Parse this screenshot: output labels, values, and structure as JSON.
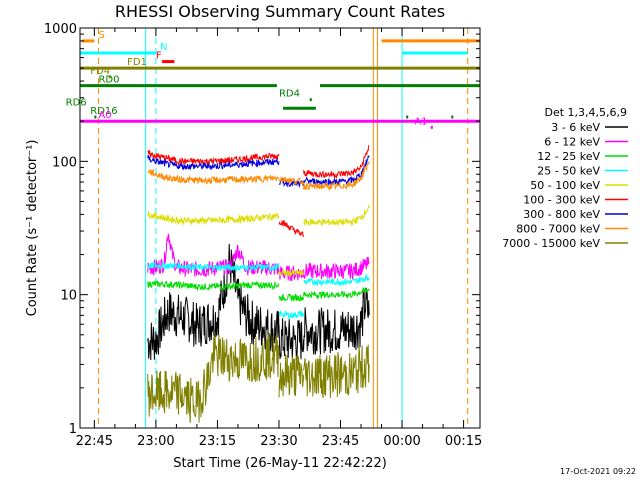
{
  "chart_data": {
    "type": "line",
    "title": "RHESSI Observing Summary Count Rates",
    "xlabel": "Start Time (26-May-11 22:42:22)",
    "ylabel": "Count Rate (s⁻¹ detector⁻¹)",
    "yscale": "log",
    "ylim": [
      1,
      1000
    ],
    "xlim_minutes_of_day": [
      1361.5,
      1459
    ],
    "x_ticks": [
      {
        "m": 1365,
        "label": "22:45"
      },
      {
        "m": 1380,
        "label": "23:00"
      },
      {
        "m": 1395,
        "label": "23:15"
      },
      {
        "m": 1410,
        "label": "23:30"
      },
      {
        "m": 1425,
        "label": "23:45"
      },
      {
        "m": 1440,
        "label": "00:00"
      },
      {
        "m": 1455,
        "label": "00:15"
      }
    ],
    "y_ticks": [
      {
        "v": 1,
        "label": "1"
      },
      {
        "v": 10,
        "label": "10"
      },
      {
        "v": 100,
        "label": "100"
      },
      {
        "v": 1000,
        "label": "1000"
      }
    ],
    "legend_title": "Det 1,3,4,5,6,9",
    "legend_position": "right",
    "timestamp": "17-Oct-2021 09:22",
    "series": [
      {
        "name": "3 - 6 keV",
        "color": "#000000",
        "segments": [
          {
            "x": [
              1378,
              1380,
              1383,
              1386,
              1388,
              1390,
              1392,
              1395,
              1398,
              1400,
              1402,
              1404,
              1406,
              1408,
              1410
            ],
            "y": [
              4.5,
              4.6,
              7.5,
              6.8,
              6.5,
              5.8,
              6.2,
              6.8,
              18,
              9,
              7,
              6,
              5.8,
              5.5,
              5.2
            ]
          },
          {
            "x": [
              1410,
              1413,
              1416
            ],
            "y": [
              4.6,
              4.5,
              4.6
            ]
          },
          {
            "x": [
              1416,
              1419,
              1422,
              1425,
              1428,
              1430,
              1431,
              1432
            ],
            "y": [
              5.5,
              5.3,
              5.4,
              5.4,
              5.6,
              6,
              8.5,
              7
            ]
          }
        ]
      },
      {
        "name": "6 - 12 keV",
        "color": "#ff00ff",
        "segments": [
          {
            "x": [
              1378,
              1380,
              1382,
              1383,
              1384,
              1385,
              1388,
              1392,
              1395,
              1398,
              1400,
              1402,
              1406,
              1410
            ],
            "y": [
              16,
              16,
              17,
              30,
              20,
              16,
              15.5,
              15.5,
              16,
              16,
              22,
              16,
              16,
              15.5
            ]
          },
          {
            "x": [
              1410,
              1413,
              1416
            ],
            "y": [
              14.5,
              14.5,
              14.5
            ]
          },
          {
            "x": [
              1416,
              1420,
              1424,
              1428,
              1430,
              1432
            ],
            "y": [
              15,
              15,
              15,
              15,
              16,
              17
            ]
          }
        ]
      },
      {
        "name": "12 - 25 keV",
        "color": "#00dd00",
        "segments": [
          {
            "x": [
              1378,
              1382,
              1386,
              1390,
              1394,
              1398,
              1402,
              1406,
              1410
            ],
            "y": [
              12,
              12,
              11.8,
              11.5,
              11.5,
              11.5,
              11.8,
              11.8,
              11.8
            ]
          },
          {
            "x": [
              1410,
              1413,
              1416
            ],
            "y": [
              9.5,
              9.5,
              9.5
            ]
          },
          {
            "x": [
              1416,
              1420,
              1424,
              1428,
              1430,
              1432
            ],
            "y": [
              10,
              10,
              10,
              10,
              10.5,
              11
            ]
          }
        ]
      },
      {
        "name": "25 - 50 keV",
        "color": "#00ffff",
        "segments": [
          {
            "x": [
              1378,
              1382,
              1386,
              1390,
              1394,
              1398,
              1402,
              1406,
              1410
            ],
            "y": [
              16.5,
              16.5,
              16.5,
              16,
              16,
              16,
              16,
              16,
              16
            ]
          },
          {
            "x": [
              1410,
              1413,
              1416
            ],
            "y": [
              7.2,
              7.0,
              7.2
            ]
          },
          {
            "x": [
              1416,
              1420,
              1424,
              1428,
              1430,
              1432
            ],
            "y": [
              12.5,
              12.5,
              12.5,
              12.5,
              13,
              13.5
            ]
          }
        ]
      },
      {
        "name": "50 - 100 keV",
        "color": "#dddd00",
        "segments": [
          {
            "x": [
              1378,
              1380,
              1383,
              1386,
              1390,
              1394,
              1398,
              1402,
              1406,
              1410
            ],
            "y": [
              40,
              39,
              37,
              36,
              36,
              36,
              36.5,
              37,
              38,
              39
            ]
          },
          {
            "x": [
              1410,
              1413,
              1416
            ],
            "y": [
              14.5,
              14.5,
              14.5
            ]
          },
          {
            "x": [
              1416,
              1420,
              1424,
              1428,
              1430,
              1432
            ],
            "y": [
              35,
              35,
              35,
              35,
              38,
              45
            ]
          }
        ]
      },
      {
        "name": "100 - 300 keV",
        "color": "#ff0000",
        "segments": [
          {
            "x": [
              1378,
              1380,
              1383,
              1386,
              1390,
              1394,
              1398,
              1402,
              1406,
              1410
            ],
            "y": [
              115,
              110,
              105,
              100,
              100,
              100,
              102,
              105,
              108,
              110
            ]
          },
          {
            "x": [
              1410,
              1412,
              1414,
              1416
            ],
            "y": [
              36,
              33,
              30,
              28
            ]
          },
          {
            "x": [
              1416,
              1420,
              1424,
              1428,
              1430,
              1432
            ],
            "y": [
              82,
              80,
              80,
              82,
              90,
              130
            ]
          }
        ]
      },
      {
        "name": "300 - 800 keV",
        "color": "#0000dd",
        "segments": [
          {
            "x": [
              1378,
              1380,
              1383,
              1386,
              1390,
              1394,
              1398,
              1402,
              1406,
              1410
            ],
            "y": [
              105,
              100,
              95,
              92,
              92,
              92,
              94,
              96,
              98,
              100
            ]
          },
          {
            "x": [
              1410,
              1412,
              1414,
              1416
            ],
            "y": [
              70,
              69,
              68,
              67
            ]
          },
          {
            "x": [
              1416,
              1420,
              1424,
              1428,
              1430,
              1432
            ],
            "y": [
              72,
              70,
              70,
              72,
              80,
              110
            ]
          }
        ]
      },
      {
        "name": "800 - 7000 keV",
        "color": "#ff8800",
        "segments": [
          {
            "x": [
              1378,
              1380,
              1383,
              1386,
              1390,
              1394,
              1398,
              1402,
              1406,
              1410
            ],
            "y": [
              85,
              80,
              75,
              73,
              72,
              72,
              73,
              73,
              74,
              75
            ]
          },
          {
            "x": [
              1410,
              1412,
              1414,
              1416
            ],
            "y": [
              74,
              73,
              71,
              70
            ]
          },
          {
            "x": [
              1416,
              1420,
              1424,
              1428,
              1430,
              1432
            ],
            "y": [
              65,
              65,
              65,
              67,
              75,
              100
            ]
          }
        ]
      },
      {
        "name": "7000 - 15000 keV",
        "color": "#808000",
        "segments": [
          {
            "x": [
              1378,
              1383,
              1386,
              1390,
              1393,
              1394,
              1398,
              1402,
              1406,
              1410
            ],
            "y": [
              1.8,
              1.8,
              1.8,
              1.5,
              2.5,
              3.5,
              3.3,
              3.2,
              3.4,
              3.5
            ]
          },
          {
            "x": [
              1410,
              1413,
              1416
            ],
            "y": [
              2.5,
              2.5,
              2.5
            ]
          },
          {
            "x": [
              1416,
              1420,
              1424,
              1428,
              1430,
              1432
            ],
            "y": [
              2.5,
              2.5,
              2.5,
              2.5,
              2.8,
              3
            ]
          }
        ]
      }
    ],
    "flags": [
      {
        "label": "S",
        "color": "#ff8800",
        "y": 800,
        "label_x": 1366,
        "segments": [
          [
            1362,
            1365
          ],
          [
            1435,
            1459
          ]
        ]
      },
      {
        "label": "N",
        "color": "#00ffff",
        "y": 650,
        "label_x": 1381,
        "segments": [
          [
            1361.5,
            1380
          ],
          [
            1440,
            1456
          ]
        ]
      },
      {
        "label": "F",
        "color": "#ff0000",
        "y": 560,
        "label_x": 1380,
        "segments": [
          [
            1381.5,
            1384.5
          ]
        ]
      },
      {
        "label": "FD1",
        "color": "#808000",
        "y": 500,
        "label_x": 1373,
        "segments": [
          [
            1361.5,
            1459
          ]
        ]
      },
      {
        "label": "FD4",
        "color": "#808000",
        "y": 430,
        "label_x": 1364,
        "segments": [
          [
            1368.5,
            1369
          ]
        ]
      },
      {
        "label": "RD0",
        "color": "#008000",
        "y": 370,
        "label_x": 1366,
        "segments": [
          [
            1361.5,
            1409.5
          ],
          [
            1420,
            1459
          ]
        ]
      },
      {
        "label": "RD4",
        "color": "#008000",
        "y": 290,
        "label_x": 1410,
        "segments": [
          [
            1417.5,
            1418
          ]
        ]
      },
      {
        "label": "RD6",
        "color": "#008000",
        "y": 250,
        "label_x": 1358,
        "segments": [
          [
            1411,
            1419
          ]
        ]
      },
      {
        "label": "RD16",
        "color": "#008000",
        "y": 215,
        "label_x": 1364,
        "segments": [
          [
            1365,
            1365.5
          ],
          [
            1441,
            1441.5
          ],
          [
            1452,
            1452.5
          ]
        ]
      },
      {
        "label": "A0",
        "color": "#ff00ff",
        "y": 200,
        "label_x": 1366,
        "segments": [
          [
            1361.5,
            1459
          ]
        ]
      },
      {
        "label": "A1",
        "color": "#ff00ff",
        "y": 180,
        "label_x": 1443,
        "segments": [
          [
            1447,
            1447.5
          ]
        ]
      }
    ],
    "vertical_lines": [
      {
        "m": 1366,
        "color": "#ff8800",
        "dashed": true
      },
      {
        "m": 1377.5,
        "color": "#00ffff",
        "dashed": false
      },
      {
        "m": 1380,
        "color": "#00ffff",
        "dashed": true
      },
      {
        "m": 1433,
        "color": "#ff8800",
        "dashed": false
      },
      {
        "m": 1434,
        "color": "#ff8800",
        "dashed": false
      },
      {
        "m": 1440,
        "color": "#00ffff",
        "dashed": false
      },
      {
        "m": 1456,
        "color": "#ff8800",
        "dashed": true
      }
    ]
  }
}
